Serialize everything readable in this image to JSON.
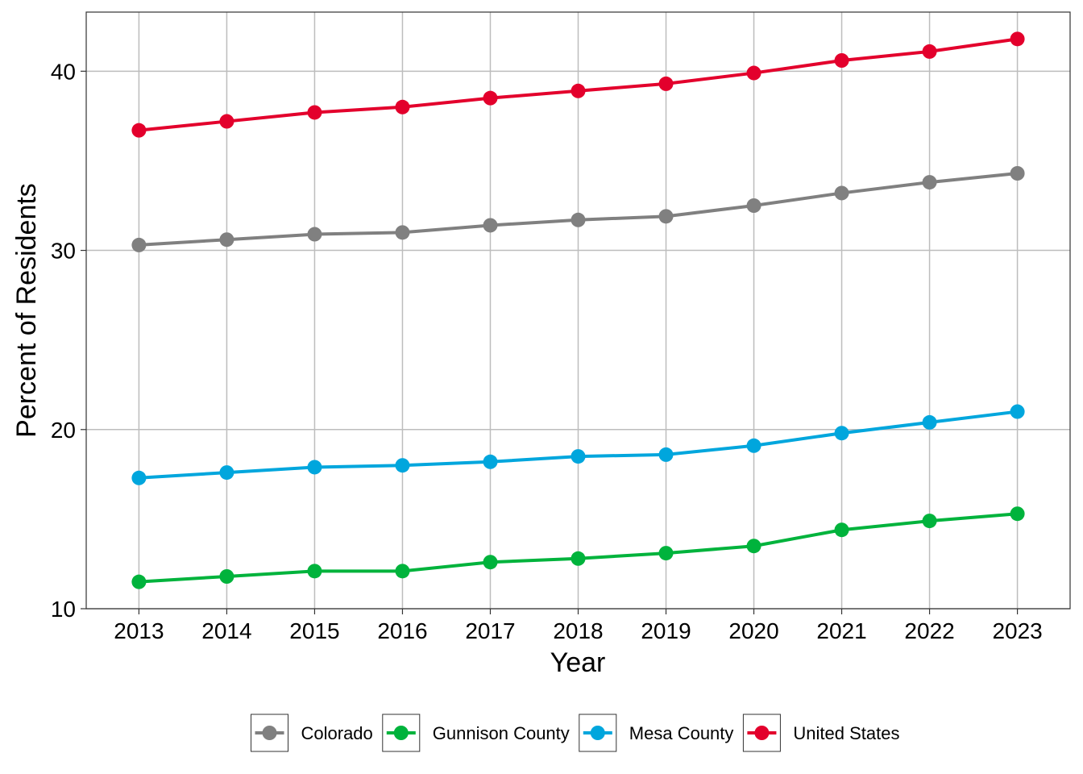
{
  "chart_data": {
    "type": "line",
    "title": "",
    "xlabel": "Year",
    "ylabel": "Percent of Residents",
    "x": [
      2013,
      2014,
      2015,
      2016,
      2017,
      2018,
      2019,
      2020,
      2021,
      2022,
      2023
    ],
    "x_tick_labels": [
      "2013",
      "2014",
      "2015",
      "2016",
      "2017",
      "2018",
      "2019",
      "2020",
      "2021",
      "2022",
      "2023"
    ],
    "y_ticks": [
      10,
      20,
      30,
      40
    ],
    "y_tick_labels": [
      "10",
      "20",
      "30",
      "40"
    ],
    "xlim": [
      2012.4,
      2023.6
    ],
    "ylim": [
      10,
      43.3
    ],
    "grid": true,
    "legend_position": "bottom",
    "series": [
      {
        "name": "Colorado",
        "color": "#808080",
        "values": [
          30.3,
          30.6,
          30.9,
          31.0,
          31.4,
          31.7,
          31.9,
          32.5,
          33.2,
          33.8,
          34.3
        ]
      },
      {
        "name": "Gunnison County",
        "color": "#00b33c",
        "values": [
          11.5,
          11.8,
          12.1,
          12.1,
          12.6,
          12.8,
          13.1,
          13.5,
          14.4,
          14.9,
          15.3
        ]
      },
      {
        "name": "Mesa County",
        "color": "#00a6dd",
        "values": [
          17.3,
          17.6,
          17.9,
          18.0,
          18.2,
          18.5,
          18.6,
          19.1,
          19.8,
          20.4,
          21.0
        ]
      },
      {
        "name": "United States",
        "color": "#e3002c",
        "values": [
          36.7,
          37.2,
          37.7,
          38.0,
          38.5,
          38.9,
          39.3,
          39.9,
          40.6,
          41.1,
          41.8
        ]
      }
    ]
  }
}
